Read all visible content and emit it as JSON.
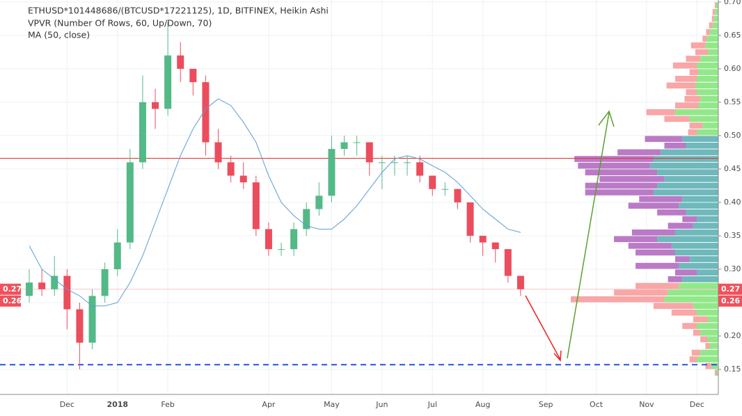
{
  "chart_data": {
    "type": "candlestick",
    "title": "ETHUSD*101448686/(BTCUSD*17221125), 1D, BITFINEX, Heikin Ashi",
    "indicators": [
      "VPVR (Number Of Rows, 60, Up/Down, 70)",
      "MA (50, close)"
    ],
    "categories": [
      null,
      null,
      null,
      "Dec",
      null,
      null,
      null,
      "2018",
      null,
      null,
      null,
      "Feb",
      null,
      null,
      null,
      null,
      null,
      null,
      null,
      "Apr",
      null,
      null,
      null,
      null,
      "May",
      null,
      null,
      null,
      "Jun",
      null,
      null,
      null,
      "Jul",
      null,
      null,
      null,
      "Aug",
      null,
      null,
      null,
      null,
      "Sep",
      null,
      null,
      null,
      "Oct",
      null,
      null,
      null,
      "Nov",
      null,
      null,
      null,
      "Dec",
      null
    ],
    "open": [
      0.26,
      0.28,
      0.27,
      0.29,
      0.24,
      0.19,
      0.26,
      0.3,
      0.34,
      0.46,
      0.55,
      0.54,
      0.62,
      0.6,
      0.58,
      0.49,
      0.46,
      0.44,
      0.43,
      0.36,
      0.33,
      0.33,
      0.36,
      0.39,
      0.41,
      0.48,
      0.49,
      0.49,
      0.46,
      0.46,
      0.46,
      0.46,
      0.44,
      0.42,
      0.42,
      0.4,
      0.35,
      0.34,
      0.33,
      0.29,
      null,
      null,
      null,
      null,
      null,
      null,
      null,
      null,
      null,
      null,
      null,
      null,
      null,
      null,
      null
    ],
    "high": [
      0.3,
      0.3,
      0.32,
      0.3,
      0.25,
      0.27,
      0.31,
      0.36,
      0.48,
      0.59,
      0.57,
      0.67,
      0.64,
      0.6,
      0.59,
      0.51,
      0.47,
      0.46,
      0.44,
      0.37,
      0.34,
      0.37,
      0.4,
      0.43,
      0.5,
      0.5,
      0.5,
      0.49,
      0.47,
      0.47,
      0.47,
      0.47,
      0.44,
      0.43,
      0.42,
      0.4,
      0.35,
      0.34,
      0.33,
      0.29,
      null,
      null,
      null,
      null,
      null,
      null,
      null,
      null,
      null,
      null,
      null,
      null,
      null,
      null,
      null
    ],
    "low": [
      0.25,
      0.26,
      0.26,
      0.21,
      0.15,
      0.18,
      0.25,
      0.29,
      0.33,
      0.45,
      0.51,
      0.53,
      0.58,
      0.56,
      0.47,
      0.45,
      0.43,
      0.42,
      0.35,
      0.32,
      0.32,
      0.32,
      0.35,
      0.38,
      0.4,
      0.47,
      0.47,
      0.44,
      0.42,
      0.44,
      0.44,
      0.43,
      0.41,
      0.41,
      0.39,
      0.34,
      0.32,
      0.31,
      0.28,
      0.26,
      null,
      null,
      null,
      null,
      null,
      null,
      null,
      null,
      null,
      null,
      null,
      null,
      null,
      null,
      null
    ],
    "close": [
      0.28,
      0.27,
      0.29,
      0.24,
      0.19,
      0.26,
      0.3,
      0.34,
      0.46,
      0.55,
      0.54,
      0.62,
      0.6,
      0.58,
      0.49,
      0.46,
      0.44,
      0.43,
      0.36,
      0.33,
      0.33,
      0.36,
      0.39,
      0.41,
      0.48,
      0.49,
      0.49,
      0.46,
      0.46,
      0.46,
      0.46,
      0.44,
      0.42,
      0.42,
      0.4,
      0.35,
      0.34,
      0.33,
      0.29,
      0.27,
      null,
      null,
      null,
      null,
      null,
      null,
      null,
      null,
      null,
      null,
      null,
      null,
      null,
      null,
      null
    ],
    "up_color": "#53b987",
    "down_color": "#eb4d5c",
    "ma": {
      "color": "#5b9bd5",
      "values": [
        0.335,
        0.3,
        0.285,
        0.27,
        0.26,
        0.245,
        0.245,
        0.25,
        0.28,
        0.32,
        0.37,
        0.42,
        0.47,
        0.51,
        0.54,
        0.555,
        0.545,
        0.52,
        0.49,
        0.44,
        0.4,
        0.38,
        0.365,
        0.36,
        0.36,
        0.375,
        0.395,
        0.42,
        0.445,
        0.465,
        0.47,
        0.465,
        0.455,
        0.445,
        0.43,
        0.41,
        0.39,
        0.375,
        0.36,
        0.355,
        null,
        null,
        null,
        null,
        null,
        null,
        null,
        null,
        null,
        null,
        null,
        null,
        null,
        null,
        null
      ]
    },
    "volume_profile": {
      "prices": [
        0.695,
        0.685,
        0.675,
        0.665,
        0.655,
        0.645,
        0.635,
        0.625,
        0.615,
        0.605,
        0.595,
        0.585,
        0.575,
        0.565,
        0.555,
        0.545,
        0.535,
        0.525,
        0.515,
        0.505,
        0.495,
        0.485,
        0.475,
        0.465,
        0.455,
        0.445,
        0.435,
        0.425,
        0.415,
        0.405,
        0.395,
        0.385,
        0.375,
        0.365,
        0.355,
        0.345,
        0.335,
        0.325,
        0.315,
        0.305,
        0.295,
        0.285,
        0.275,
        0.265,
        0.255,
        0.245,
        0.235,
        0.225,
        0.215,
        0.205,
        0.195,
        0.185,
        0.175,
        0.165,
        0.155,
        0.145
      ],
      "up": [
        3,
        5,
        6,
        8,
        12,
        16,
        18,
        14,
        25,
        30,
        28,
        30,
        32,
        30,
        25,
        28,
        60,
        40,
        22,
        30,
        50,
        45,
        80,
        90,
        95,
        85,
        75,
        85,
        90,
        50,
        55,
        45,
        30,
        35,
        60,
        85,
        65,
        60,
        40,
        55,
        30,
        50,
        55,
        70,
        75,
        35,
        30,
        15,
        30,
        25,
        15,
        12,
        25,
        30,
        10,
        2
      ],
      "down": [
        2,
        3,
        3,
        5,
        5,
        6,
        20,
        18,
        20,
        33,
        12,
        30,
        40,
        15,
        22,
        32,
        40,
        35,
        18,
        12,
        52,
        30,
        60,
        110,
        100,
        100,
        90,
        100,
        95,
        60,
        70,
        40,
        20,
        35,
        60,
        60,
        60,
        55,
        20,
        60,
        30,
        20,
        60,
        75,
        130,
        55,
        35,
        20,
        20,
        10,
        10,
        6,
        12,
        10,
        8,
        3
      ],
      "value_area": [
        0.28,
        0.5
      ],
      "colors": {
        "up": "#86e67c",
        "down": "#f79c9c",
        "va_up": "#5fb0b4",
        "va_down": "#b26cc0"
      }
    },
    "hlines": [
      {
        "value": 0.466,
        "color": "#e53935",
        "dash": false
      },
      {
        "value": 0.157,
        "color": "#1e53e5",
        "dash": true
      }
    ],
    "last_price": [
      0.27,
      0.26
    ],
    "ylim": [
      0.1125,
      0.703
    ],
    "yticks": [
      0.15,
      {
        "value": 0.2,
        "label": "0.20"
      },
      0.25,
      {
        "value": 0.3,
        "label": "0.30"
      },
      0.35,
      {
        "value": 0.4,
        "label": "0.40"
      },
      0.45,
      {
        "value": 0.5,
        "label": "0.50"
      },
      0.55,
      {
        "value": 0.6,
        "label": "0.60"
      },
      0.65,
      {
        "value": 0.7,
        "label": "0.70"
      }
    ],
    "grid": true
  }
}
